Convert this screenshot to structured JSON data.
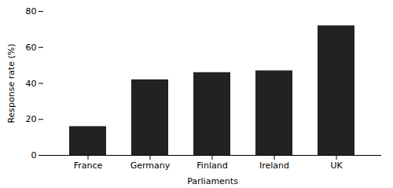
{
  "chart_data": {
    "type": "bar",
    "categories": [
      "France",
      "Germany",
      "Finland",
      "Ireland",
      "UK"
    ],
    "values": [
      16,
      42,
      46,
      47,
      72
    ],
    "color": "#222222",
    "xlabel": "Parliaments",
    "ylabel": "Response rate (%)",
    "ylim": [
      0,
      80
    ],
    "yticks": [
      0,
      20,
      40,
      60,
      80
    ],
    "grid": false
  }
}
